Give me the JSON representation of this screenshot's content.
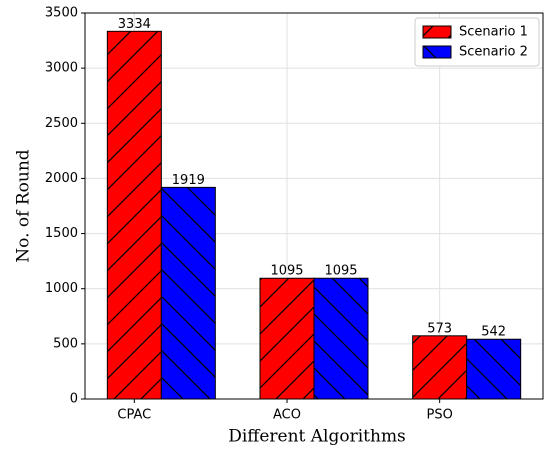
{
  "chart_data": {
    "type": "bar",
    "xlabel": "Different Algorithms",
    "ylabel": "No. of Round",
    "categories": [
      "CPAC",
      "ACO",
      "PSO"
    ],
    "series": [
      {
        "name": "Scenario 1",
        "color": "#ff0000",
        "hatch": "/",
        "values": [
          3334,
          1095,
          573
        ]
      },
      {
        "name": "Scenario 2",
        "color": "#0000ff",
        "hatch": "\\",
        "values": [
          1919,
          1095,
          542
        ]
      }
    ],
    "ylim": [
      0,
      3500
    ],
    "yticks": [
      0,
      500,
      1000,
      1500,
      2000,
      2500,
      3000,
      3500
    ],
    "grid": true,
    "legend": "upper right"
  }
}
